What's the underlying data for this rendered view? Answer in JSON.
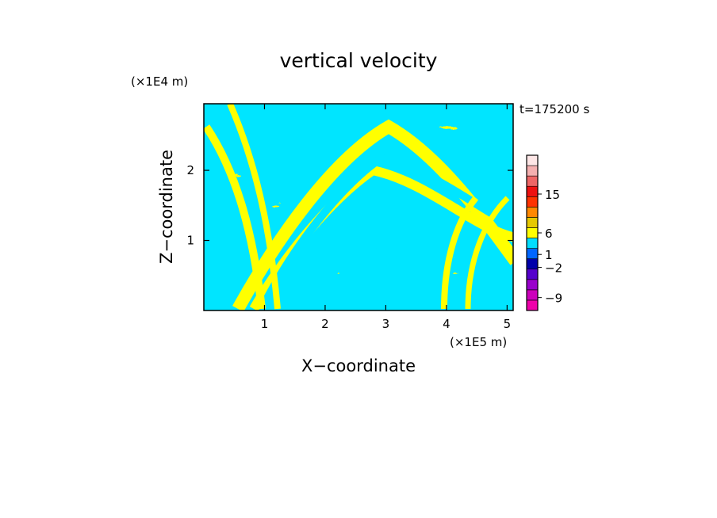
{
  "chart_data": {
    "type": "heatmap",
    "title": "vertical velocity",
    "xlabel": "X−coordinate",
    "ylabel": "Z−coordinate",
    "x_unit": "(×1E5 m)",
    "y_unit": "(×1E4 m)",
    "time_label": "t=175200 s",
    "xlim": [
      0,
      5.1
    ],
    "ylim": [
      0,
      2.95
    ],
    "x_ticks": [
      1,
      2,
      3,
      4,
      5
    ],
    "y_ticks": [
      1,
      2
    ],
    "x_tick_labels": [
      "1",
      "2",
      "3",
      "4",
      "5"
    ],
    "y_tick_labels": [
      "1",
      "2"
    ],
    "field_colors": {
      "positive": "#ffff00",
      "negative": "#00e5ff"
    },
    "colorbar": {
      "labels": [
        "15",
        "6",
        "1",
        "−2",
        "−9"
      ],
      "label_values": [
        15,
        6,
        1,
        -2,
        -9
      ],
      "colors_bottom_to_top": [
        "#ee00aa",
        "#cc00bb",
        "#9900cc",
        "#5500cc",
        "#0000aa",
        "#0066ff",
        "#00ddff",
        "#ffff00",
        "#e6c800",
        "#ff8800",
        "#ff3300",
        "#ee1111",
        "#ee6666",
        "#f4b0b0",
        "#fde6e6"
      ]
    }
  }
}
